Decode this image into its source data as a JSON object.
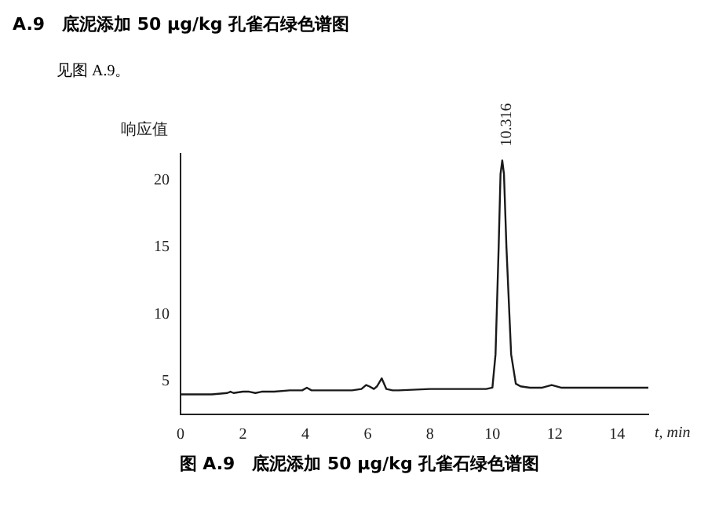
{
  "chart_data": {
    "type": "line",
    "title": "A.9　底泥添加 50 μg/kg 孔雀石绿色谱图",
    "subtitle": "见图 A.9。",
    "xlabel": "t, min",
    "ylabel": "响应值",
    "annotations": [
      {
        "text": "10.316",
        "x": 10.316,
        "y": 21.5
      },
      "图 A.9　底泥添加 50 μg/kg 孔雀石绿色谱图"
    ],
    "series": [
      {
        "color": "#1a1a1a",
        "x": [
          0,
          0.5,
          1,
          1.5,
          1.6,
          1.7,
          2,
          2.2,
          2.4,
          2.6,
          3,
          3.5,
          3.9,
          4.05,
          4.2,
          4.5,
          5,
          5.5,
          5.8,
          5.95,
          6.05,
          6.2,
          6.3,
          6.45,
          6.6,
          6.8,
          7,
          8,
          9,
          9.8,
          10,
          10.1,
          10.2,
          10.26,
          10.316,
          10.37,
          10.45,
          10.6,
          10.75,
          10.9,
          11.2,
          11.6,
          11.9,
          12.2,
          12.5,
          13,
          13.5,
          14,
          14.5,
          15
        ],
        "values": [
          4.0,
          4.0,
          4.0,
          4.1,
          4.2,
          4.1,
          4.2,
          4.2,
          4.1,
          4.2,
          4.2,
          4.3,
          4.3,
          4.5,
          4.3,
          4.3,
          4.3,
          4.3,
          4.4,
          4.7,
          4.6,
          4.4,
          4.6,
          5.2,
          4.4,
          4.3,
          4.3,
          4.4,
          4.4,
          4.4,
          4.5,
          7,
          15,
          20.5,
          21.5,
          20.5,
          15,
          7,
          4.8,
          4.6,
          4.5,
          4.5,
          4.7,
          4.5,
          4.5,
          4.5,
          4.5,
          4.5,
          4.5,
          4.5
        ]
      }
    ],
    "xlim": [
      0,
      15
    ],
    "xticks": [
      0,
      2,
      4,
      6,
      8,
      10,
      12,
      14
    ],
    "ylim": [
      2.5,
      22
    ],
    "yticks": [
      5,
      10,
      15,
      20
    ],
    "grid": false,
    "legend": false,
    "marker": "none",
    "line_style": "solid"
  }
}
